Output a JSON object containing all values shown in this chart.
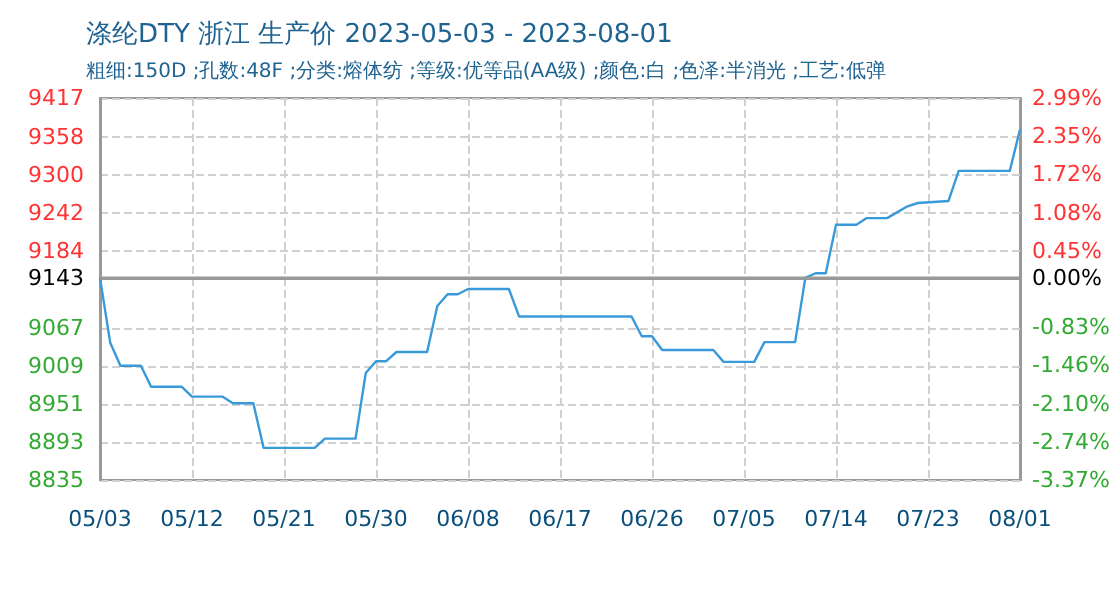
{
  "chart_data": {
    "type": "line",
    "title": "涤纶DTY 浙江 生产价 2023-05-03 - 2023-08-01",
    "subtitle": "粗细:150D ;孔数:48F ;分类:熔体纺 ;等级:优等品(AA级) ;颜色:白 ;色泽:半消光 ;工艺:低弹",
    "x": [
      "2023-05-03",
      "2023-05-04",
      "2023-05-05",
      "2023-05-07",
      "2023-05-08",
      "2023-05-11",
      "2023-05-12",
      "2023-05-15",
      "2023-05-16",
      "2023-05-18",
      "2023-05-19",
      "2023-05-24",
      "2023-05-25",
      "2023-05-28",
      "2023-05-29",
      "2023-05-30",
      "2023-05-31",
      "2023-06-01",
      "2023-06-04",
      "2023-06-05",
      "2023-06-06",
      "2023-06-07",
      "2023-06-08",
      "2023-06-12",
      "2023-06-13",
      "2023-06-24",
      "2023-06-25",
      "2023-06-26",
      "2023-06-27",
      "2023-07-02",
      "2023-07-03",
      "2023-07-06",
      "2023-07-07",
      "2023-07-10",
      "2023-07-11",
      "2023-07-12",
      "2023-07-13",
      "2023-07-14",
      "2023-07-16",
      "2023-07-17",
      "2023-07-19",
      "2023-07-21",
      "2023-07-22",
      "2023-07-25",
      "2023-07-26",
      "2023-07-31",
      "2023-08-01"
    ],
    "series": [
      {
        "color": "#3a9ad9",
        "values": [
          9143,
          9044,
          9009,
          9009,
          8977,
          8977,
          8962,
          8962,
          8952,
          8952,
          8884,
          8884,
          8898,
          8898,
          8998,
          9016,
          9016,
          9030,
          9030,
          9100,
          9118,
          9118,
          9126,
          9126,
          9084,
          9084,
          9054,
          9054,
          9033,
          9033,
          9015,
          9015,
          9045,
          9045,
          9143,
          9150,
          9150,
          9224,
          9224,
          9234,
          9234,
          9252,
          9257,
          9260,
          9306,
          9306,
          9369
        ]
      }
    ],
    "xlim": [
      "2023-05-03",
      "2023-08-01"
    ],
    "xticks": [
      {
        "value": "2023-05-03",
        "label": "05/03"
      },
      {
        "value": "2023-05-12",
        "label": "05/12"
      },
      {
        "value": "2023-05-21",
        "label": "05/21"
      },
      {
        "value": "2023-05-30",
        "label": "05/30"
      },
      {
        "value": "2023-06-08",
        "label": "06/08"
      },
      {
        "value": "2023-06-17",
        "label": "06/17"
      },
      {
        "value": "2023-06-26",
        "label": "06/26"
      },
      {
        "value": "2023-07-05",
        "label": "07/05"
      },
      {
        "value": "2023-07-14",
        "label": "07/14"
      },
      {
        "value": "2023-07-23",
        "label": "07/23"
      },
      {
        "value": "2023-08-01",
        "label": "08/01"
      }
    ],
    "ylim": [
      8835,
      9417
    ],
    "yticks": [
      8835,
      8893,
      8951,
      9009,
      9067,
      9143,
      9184,
      9242,
      9300,
      9358,
      9417
    ],
    "y2lim": [
      -3.37,
      2.99
    ],
    "y2ticks": [
      {
        "value": -3.37,
        "label": "-3.37%"
      },
      {
        "value": -2.74,
        "label": "-2.74%"
      },
      {
        "value": -2.1,
        "label": "-2.10%"
      },
      {
        "value": -1.46,
        "label": "-1.46%"
      },
      {
        "value": -0.83,
        "label": "-0.83%"
      },
      {
        "value": 0,
        "label": "0.00%"
      },
      {
        "value": 0.45,
        "label": "0.45%"
      },
      {
        "value": 1.08,
        "label": "1.08%"
      },
      {
        "value": 1.72,
        "label": "1.72%"
      },
      {
        "value": 2.35,
        "label": "2.35%"
      },
      {
        "value": 2.99,
        "label": "2.99%"
      }
    ],
    "ref_lines": [
      {
        "axis": "y",
        "value": 9143,
        "color": "#999999"
      }
    ],
    "grid": true,
    "marker": "none",
    "line_style": "solid"
  }
}
